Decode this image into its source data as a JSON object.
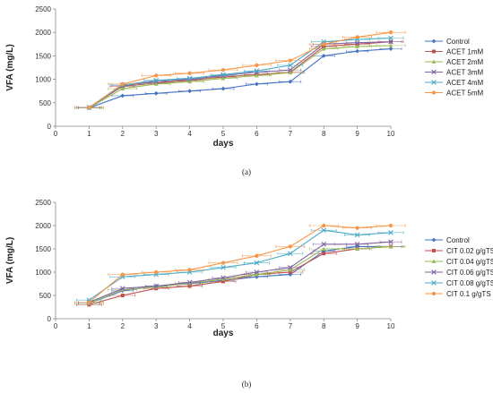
{
  "chart_data": [
    {
      "type": "line",
      "caption": "(a)",
      "xlabel": "days",
      "ylabel": "VFA (mg/L)",
      "xlim": [
        0,
        10
      ],
      "ylim": [
        0,
        2500
      ],
      "xticks": [
        0,
        1,
        2,
        3,
        4,
        5,
        6,
        7,
        8,
        9,
        10
      ],
      "yticks": [
        0,
        500,
        1000,
        1500,
        2000,
        2500
      ],
      "grid": false,
      "legend": "right",
      "x": [
        1,
        2,
        3,
        4,
        5,
        6,
        7,
        8,
        9,
        10
      ],
      "series": [
        {
          "name": "Control",
          "color": "#4472c4",
          "marker": "diamond",
          "values": [
            390,
            650,
            700,
            750,
            800,
            900,
            950,
            1500,
            1600,
            1650
          ]
        },
        {
          "name": "ACET  1mM",
          "color": "#c0504d",
          "marker": "square",
          "values": [
            400,
            850,
            920,
            980,
            1050,
            1100,
            1150,
            1700,
            1750,
            1800
          ]
        },
        {
          "name": "ACET  2mM",
          "color": "#9bbb59",
          "marker": "triangle",
          "values": [
            390,
            800,
            900,
            950,
            1020,
            1080,
            1140,
            1650,
            1700,
            1720
          ]
        },
        {
          "name": "ACET  3mM",
          "color": "#8064a2",
          "marker": "x",
          "values": [
            400,
            870,
            950,
            1000,
            1080,
            1150,
            1200,
            1750,
            1780,
            1800
          ]
        },
        {
          "name": "ACET  4mM",
          "color": "#4bacc6",
          "marker": "x",
          "values": [
            400,
            880,
            980,
            1020,
            1100,
            1180,
            1300,
            1800,
            1850,
            1880
          ]
        },
        {
          "name": "ACET  5mM",
          "color": "#f79646",
          "marker": "circle",
          "values": [
            400,
            900,
            1080,
            1130,
            1200,
            1300,
            1400,
            1750,
            1900,
            2000
          ]
        }
      ]
    },
    {
      "type": "line",
      "caption": "(b)",
      "xlabel": "days",
      "ylabel": "VFA (mg/L)",
      "xlim": [
        0,
        10
      ],
      "ylim": [
        0,
        2500
      ],
      "xticks": [
        0,
        1,
        2,
        3,
        4,
        5,
        6,
        7,
        8,
        9,
        10
      ],
      "yticks": [
        0,
        500,
        1000,
        1500,
        2000,
        2500
      ],
      "grid": false,
      "legend": "right",
      "x": [
        1,
        2,
        3,
        4,
        5,
        6,
        7,
        8,
        9,
        10
      ],
      "series": [
        {
          "name": "Control",
          "color": "#4472c4",
          "marker": "diamond",
          "values": [
            330,
            600,
            700,
            750,
            820,
            900,
            950,
            1450,
            1550,
            1550
          ]
        },
        {
          "name": "CIT  0.02 g/gTS",
          "color": "#c0504d",
          "marker": "square",
          "values": [
            300,
            500,
            650,
            700,
            800,
            950,
            1000,
            1400,
            1500,
            1550
          ]
        },
        {
          "name": "CIT  0.04 g/gTS",
          "color": "#9bbb59",
          "marker": "triangle",
          "values": [
            330,
            620,
            680,
            760,
            850,
            950,
            1050,
            1500,
            1500,
            1550
          ]
        },
        {
          "name": "CIT  0.06 g/gTS",
          "color": "#8064a2",
          "marker": "x",
          "values": [
            350,
            650,
            700,
            780,
            880,
            1000,
            1100,
            1600,
            1600,
            1650
          ]
        },
        {
          "name": "CIT  0.08 g/gTS",
          "color": "#4bacc6",
          "marker": "x",
          "values": [
            400,
            900,
            950,
            1000,
            1100,
            1200,
            1400,
            1900,
            1800,
            1850
          ]
        },
        {
          "name": "CIT  0.1 g/gTS",
          "color": "#f79646",
          "marker": "circle",
          "values": [
            350,
            950,
            1000,
            1050,
            1200,
            1350,
            1550,
            2000,
            1950,
            2000
          ]
        }
      ]
    }
  ]
}
